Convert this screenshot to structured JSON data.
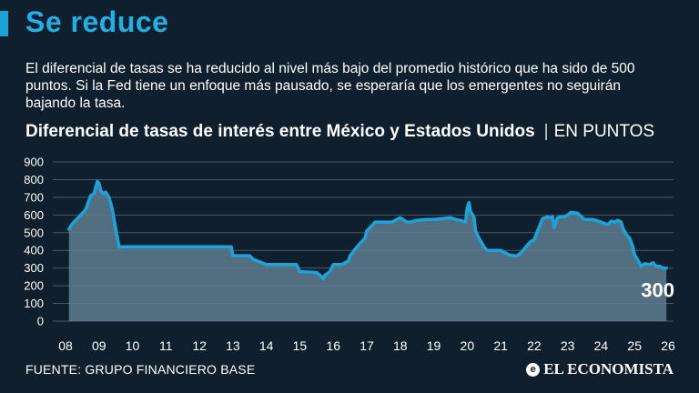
{
  "headline": "Se reduce",
  "description": "El diferencial de tasas se ha reducido al nivel más bajo del promedio histórico que ha sido de 500 puntos. Si la Fed tiene un enfoque más pausado, se esperaría que los emergentes no seguirán bajando la tasa.",
  "chart_title": "Diferencial de tasas de interés entre México y Estados Unidos",
  "chart_title_separator": "|",
  "chart_unit": "EN PUNTOS",
  "source": "FUENTE: GRUPO FINANCIERO BASE",
  "brand": "EL ECONOMISTA",
  "brand_icon": "newspaper-e-icon",
  "colors": {
    "background": "#0f1f2e",
    "accent": "#1fb0e6",
    "line": "#1aa4dc",
    "area": "#5e7e8f",
    "grid": "#4a5966"
  },
  "chart_data": {
    "type": "area",
    "title": "Diferencial de tasas de interés entre México y Estados Unidos",
    "unit": "EN PUNTOS",
    "xlabel": "",
    "ylabel": "",
    "ylim": [
      0,
      900
    ],
    "yticks": [
      0,
      100,
      200,
      300,
      400,
      500,
      600,
      700,
      800,
      900
    ],
    "xlim": [
      2008,
      2026
    ],
    "xticks": [
      "08",
      "09",
      "10",
      "11",
      "12",
      "13",
      "14",
      "15",
      "16",
      "17",
      "18",
      "19",
      "20",
      "21",
      "22",
      "23",
      "24",
      "25",
      "26"
    ],
    "grid": true,
    "last_value_label": "300",
    "series": [
      {
        "x": [
          2008.1,
          2008.2,
          2008.3,
          2008.45,
          2008.6,
          2008.75,
          2008.85,
          2008.95,
          2009.0,
          2009.05,
          2009.12,
          2009.2,
          2009.3,
          2009.4,
          2009.5,
          2009.6,
          2010.0,
          2011.0,
          2012.0,
          2012.95,
          2013.0,
          2013.5,
          2013.6,
          2014.0,
          2014.25,
          2014.9,
          2015.0,
          2015.5,
          2015.6,
          2015.7,
          2015.75,
          2015.9,
          2016.0,
          2016.25,
          2016.45,
          2016.5,
          2016.75,
          2016.95,
          2017.0,
          2017.25,
          2017.5,
          2017.75,
          2017.9,
          2018.0,
          2018.2,
          2018.3,
          2018.5,
          2018.75,
          2019.0,
          2019.25,
          2019.5,
          2019.65,
          2019.8,
          2019.95,
          2020.0,
          2020.05,
          2020.1,
          2020.2,
          2020.25,
          2020.35,
          2020.5,
          2020.6,
          2021.0,
          2021.25,
          2021.4,
          2021.5,
          2021.65,
          2021.75,
          2021.9,
          2022.0,
          2022.1,
          2022.25,
          2022.4,
          2022.5,
          2022.55,
          2022.6,
          2022.7,
          2022.8,
          2022.9,
          2023.0,
          2023.1,
          2023.3,
          2023.5,
          2023.75,
          2024.0,
          2024.2,
          2024.3,
          2024.4,
          2024.5,
          2024.6,
          2024.65,
          2024.75,
          2024.85,
          2024.95,
          2025.0,
          2025.1,
          2025.2,
          2025.3,
          2025.45,
          2025.55,
          2025.65,
          2025.75,
          2025.85,
          2025.95
        ],
        "values": [
          520,
          550,
          570,
          600,
          630,
          710,
          720,
          790,
          780,
          740,
          720,
          730,
          700,
          630,
          520,
          420,
          420,
          420,
          420,
          420,
          370,
          370,
          350,
          320,
          320,
          320,
          280,
          275,
          260,
          240,
          260,
          280,
          320,
          320,
          340,
          370,
          430,
          470,
          510,
          560,
          560,
          560,
          575,
          585,
          560,
          560,
          570,
          575,
          575,
          580,
          585,
          575,
          570,
          560,
          640,
          670,
          620,
          590,
          510,
          470,
          420,
          400,
          400,
          375,
          370,
          370,
          395,
          420,
          450,
          460,
          510,
          580,
          590,
          585,
          590,
          530,
          585,
          590,
          590,
          600,
          615,
          610,
          575,
          575,
          560,
          545,
          565,
          560,
          570,
          560,
          525,
          490,
          470,
          420,
          375,
          345,
          310,
          325,
          320,
          330,
          310,
          310,
          300,
          300
        ]
      }
    ]
  }
}
